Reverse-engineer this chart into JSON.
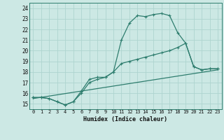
{
  "xlabel": "Humidex (Indice chaleur)",
  "bg_color": "#cce8e4",
  "line_color": "#2e7d6e",
  "grid_color": "#aed4cf",
  "xlim": [
    -0.5,
    23.5
  ],
  "ylim": [
    14.5,
    24.5
  ],
  "xticks": [
    0,
    1,
    2,
    3,
    4,
    5,
    6,
    7,
    8,
    9,
    10,
    11,
    12,
    13,
    14,
    15,
    16,
    17,
    18,
    19,
    20,
    21,
    22,
    23
  ],
  "yticks": [
    15,
    16,
    17,
    18,
    19,
    20,
    21,
    22,
    23,
    24
  ],
  "line1_x": [
    0,
    1,
    2,
    3,
    4,
    5,
    6,
    7,
    8,
    9,
    10,
    11,
    12,
    13,
    14,
    15,
    16,
    17,
    18,
    19,
    20,
    21,
    22,
    23
  ],
  "line1_y": [
    15.6,
    15.6,
    15.5,
    15.2,
    14.9,
    15.2,
    16.2,
    17.3,
    17.5,
    17.5,
    18.0,
    21.0,
    22.6,
    23.3,
    23.2,
    23.4,
    23.5,
    23.3,
    21.7,
    20.7,
    18.5,
    18.2,
    18.3,
    18.3
  ],
  "line2_x": [
    0,
    1,
    2,
    3,
    4,
    5,
    6,
    7,
    8,
    9,
    10,
    11,
    12,
    13,
    14,
    15,
    16,
    17,
    18,
    19,
    20,
    21,
    22,
    23
  ],
  "line2_y": [
    15.6,
    15.6,
    15.5,
    15.2,
    14.9,
    15.2,
    16.0,
    17.0,
    17.3,
    17.5,
    18.0,
    18.8,
    19.0,
    19.2,
    19.4,
    19.6,
    19.8,
    20.0,
    20.3,
    20.7,
    18.5,
    18.2,
    18.3,
    18.3
  ],
  "line3_x": [
    0,
    23
  ],
  "line3_y": [
    15.5,
    18.2
  ]
}
